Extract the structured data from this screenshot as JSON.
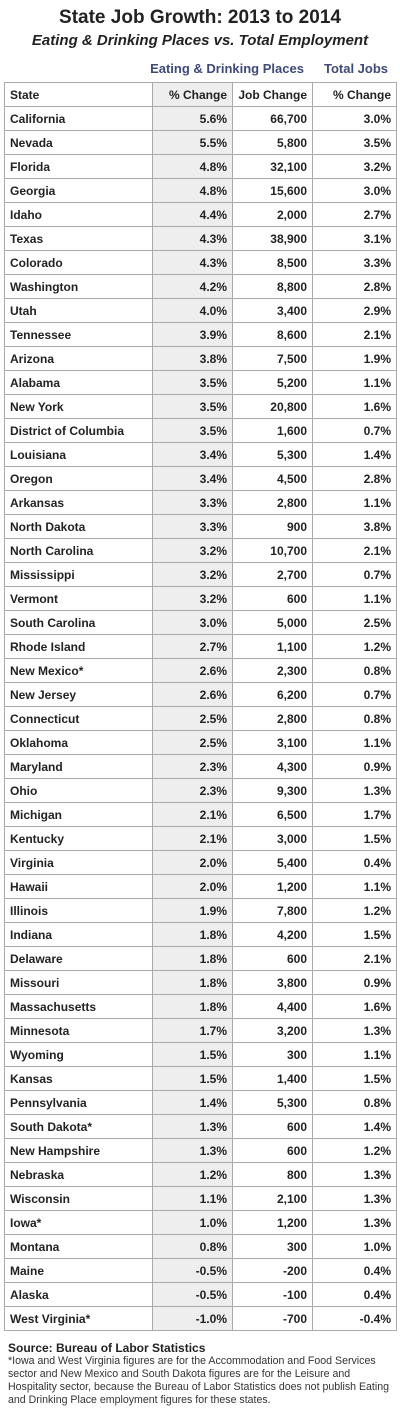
{
  "title": "State Job Growth: 2013 to 2014",
  "subtitle": "Eating & Drinking Places vs. Total Employment",
  "group_headers": [
    "Eating & Drinking Places",
    "Total Jobs"
  ],
  "table": {
    "header": [
      "State",
      "% Change",
      "Job Change",
      "% Change"
    ],
    "rows": [
      [
        "California",
        "5.6%",
        "66,700",
        "3.0%"
      ],
      [
        "Nevada",
        "5.5%",
        "5,800",
        "3.5%"
      ],
      [
        "Florida",
        "4.8%",
        "32,100",
        "3.2%"
      ],
      [
        "Georgia",
        "4.8%",
        "15,600",
        "3.0%"
      ],
      [
        "Idaho",
        "4.4%",
        "2,000",
        "2.7%"
      ],
      [
        "Texas",
        "4.3%",
        "38,900",
        "3.1%"
      ],
      [
        "Colorado",
        "4.3%",
        "8,500",
        "3.3%"
      ],
      [
        "Washington",
        "4.2%",
        "8,800",
        "2.8%"
      ],
      [
        "Utah",
        "4.0%",
        "3,400",
        "2.9%"
      ],
      [
        "Tennessee",
        "3.9%",
        "8,600",
        "2.1%"
      ],
      [
        "Arizona",
        "3.8%",
        "7,500",
        "1.9%"
      ],
      [
        "Alabama",
        "3.5%",
        "5,200",
        "1.1%"
      ],
      [
        "New York",
        "3.5%",
        "20,800",
        "1.6%"
      ],
      [
        "District of Columbia",
        "3.5%",
        "1,600",
        "0.7%"
      ],
      [
        "Louisiana",
        "3.4%",
        "5,300",
        "1.4%"
      ],
      [
        "Oregon",
        "3.4%",
        "4,500",
        "2.8%"
      ],
      [
        "Arkansas",
        "3.3%",
        "2,800",
        "1.1%"
      ],
      [
        "North Dakota",
        "3.3%",
        "900",
        "3.8%"
      ],
      [
        "North Carolina",
        "3.2%",
        "10,700",
        "2.1%"
      ],
      [
        "Mississippi",
        "3.2%",
        "2,700",
        "0.7%"
      ],
      [
        "Vermont",
        "3.2%",
        "600",
        "1.1%"
      ],
      [
        "South Carolina",
        "3.0%",
        "5,000",
        "2.5%"
      ],
      [
        "Rhode Island",
        "2.7%",
        "1,100",
        "1.2%"
      ],
      [
        "New Mexico*",
        "2.6%",
        "2,300",
        "0.8%"
      ],
      [
        "New Jersey",
        "2.6%",
        "6,200",
        "0.7%"
      ],
      [
        "Connecticut",
        "2.5%",
        "2,800",
        "0.8%"
      ],
      [
        "Oklahoma",
        "2.5%",
        "3,100",
        "1.1%"
      ],
      [
        "Maryland",
        "2.3%",
        "4,300",
        "0.9%"
      ],
      [
        "Ohio",
        "2.3%",
        "9,300",
        "1.3%"
      ],
      [
        "Michigan",
        "2.1%",
        "6,500",
        "1.7%"
      ],
      [
        "Kentucky",
        "2.1%",
        "3,000",
        "1.5%"
      ],
      [
        "Virginia",
        "2.0%",
        "5,400",
        "0.4%"
      ],
      [
        "Hawaii",
        "2.0%",
        "1,200",
        "1.1%"
      ],
      [
        "Illinois",
        "1.9%",
        "7,800",
        "1.2%"
      ],
      [
        "Indiana",
        "1.8%",
        "4,200",
        "1.5%"
      ],
      [
        "Delaware",
        "1.8%",
        "600",
        "2.1%"
      ],
      [
        "Missouri",
        "1.8%",
        "3,800",
        "0.9%"
      ],
      [
        "Massachusetts",
        "1.8%",
        "4,400",
        "1.6%"
      ],
      [
        "Minnesota",
        "1.7%",
        "3,200",
        "1.3%"
      ],
      [
        "Wyoming",
        "1.5%",
        "300",
        "1.1%"
      ],
      [
        "Kansas",
        "1.5%",
        "1,400",
        "1.5%"
      ],
      [
        "Pennsylvania",
        "1.4%",
        "5,300",
        "0.8%"
      ],
      [
        "South Dakota*",
        "1.3%",
        "600",
        "1.4%"
      ],
      [
        "New Hampshire",
        "1.3%",
        "600",
        "1.2%"
      ],
      [
        "Nebraska",
        "1.2%",
        "800",
        "1.3%"
      ],
      [
        "Wisconsin",
        "1.1%",
        "2,100",
        "1.3%"
      ],
      [
        "Iowa*",
        "1.0%",
        "1,200",
        "1.3%"
      ],
      [
        "Montana",
        "0.8%",
        "300",
        "1.0%"
      ],
      [
        "Maine",
        "-0.5%",
        "-200",
        "0.4%"
      ],
      [
        "Alaska",
        "-0.5%",
        "-100",
        "0.4%"
      ],
      [
        "West Virginia*",
        "-1.0%",
        "-700",
        "-0.4%"
      ]
    ]
  },
  "source": "Source: Bureau of Labor Statistics",
  "note": "*Iowa and West Virginia figures are for the Accommodation and Food Services sector and New Mexico and South Dakota figures are for the Leisure and Hospitality sector, because the Bureau of Labor Statistics does not publish Eating and Drinking Place employment figures for these states."
}
